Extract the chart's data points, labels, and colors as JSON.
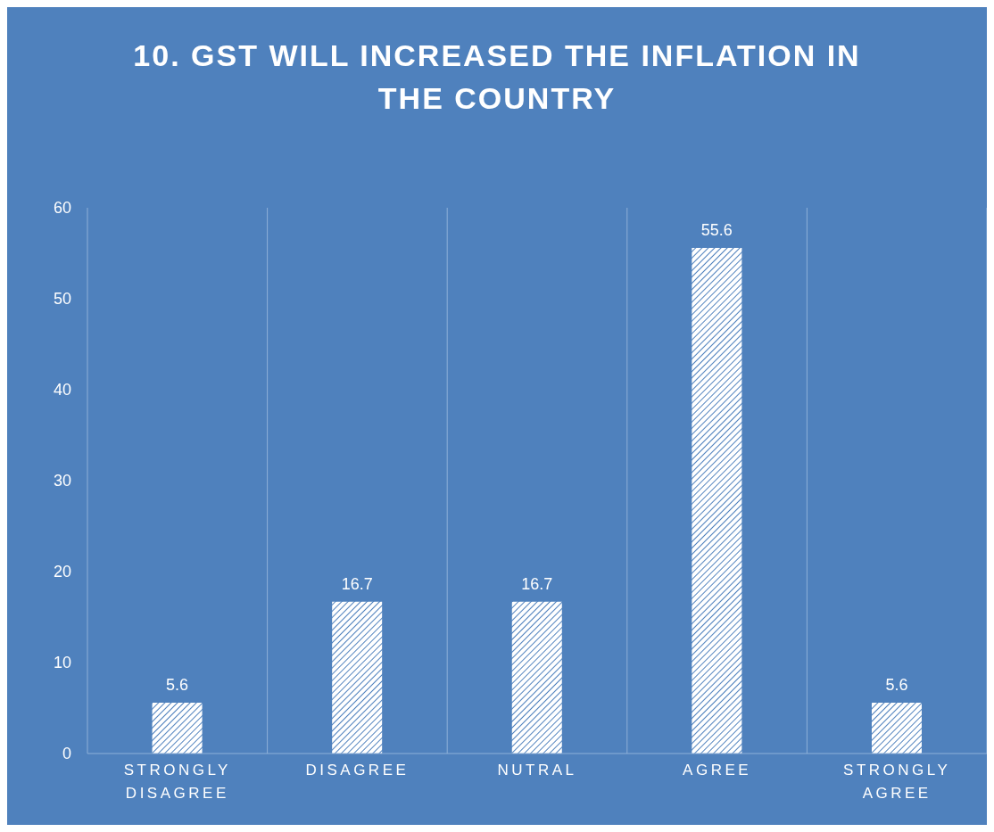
{
  "chart_data": {
    "type": "bar",
    "title": "10. GST WILL INCREASED THE INFLATION IN THE COUNTRY",
    "categories": [
      "STRONGLY DISAGREE",
      "DISAGREE",
      "NUTRAL",
      "AGREE",
      "STRONGLY AGREE"
    ],
    "values": [
      5.6,
      16.7,
      16.7,
      55.6,
      5.6
    ],
    "color": "#ffffff",
    "ylim": [
      0,
      60
    ],
    "yticks": [
      0,
      10,
      20,
      30,
      40,
      50,
      60
    ],
    "grid": "x",
    "data_labels": true
  }
}
